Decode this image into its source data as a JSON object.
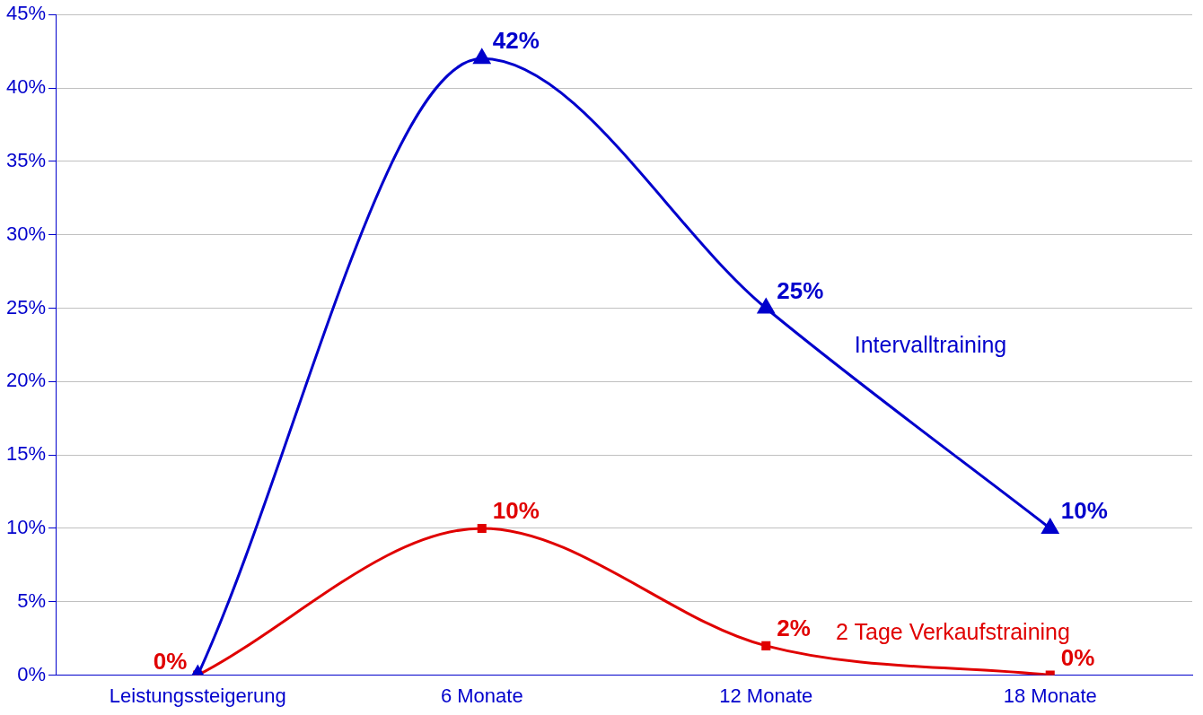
{
  "chart_data": {
    "type": "line",
    "categories": [
      "Leistungssteigerung",
      "6 Monate",
      "12 Monate",
      "18 Monate"
    ],
    "series": [
      {
        "name": "Intervalltraining",
        "color": "#0000cc",
        "values": [
          0,
          42,
          25,
          10
        ],
        "marker": "triangle",
        "value_labels": [
          null,
          "42%",
          "25%",
          "10%"
        ]
      },
      {
        "name": "2 Tage Verkaufstraining",
        "color": "#e00000",
        "values": [
          0,
          10,
          2,
          0
        ],
        "marker": "square",
        "value_labels": [
          "0%",
          "10%",
          "2%",
          "0%"
        ]
      }
    ],
    "ylim": [
      0,
      45
    ],
    "yticks": [
      {
        "value": 0,
        "label": "0%"
      },
      {
        "value": 5,
        "label": "5%"
      },
      {
        "value": 10,
        "label": "10%"
      },
      {
        "value": 15,
        "label": "15%"
      },
      {
        "value": 20,
        "label": "20%"
      },
      {
        "value": 25,
        "label": "25%"
      },
      {
        "value": 30,
        "label": "30%"
      },
      {
        "value": 35,
        "label": "35%"
      },
      {
        "value": 40,
        "label": "40%"
      },
      {
        "value": 45,
        "label": "45%"
      }
    ],
    "grid": "y",
    "legend": false
  }
}
